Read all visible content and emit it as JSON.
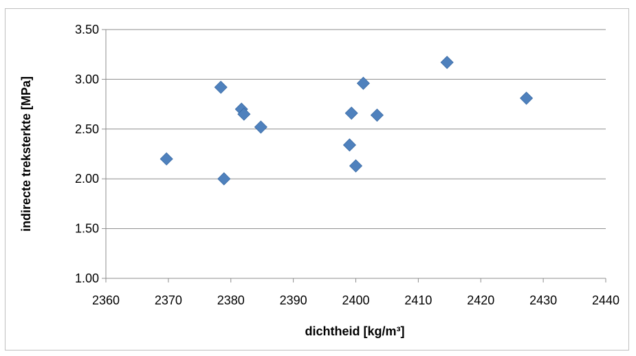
{
  "chart_data": {
    "type": "scatter",
    "title": "",
    "xlabel": "dichtheid [kg/m³]",
    "ylabel": "indirecte treksterkte [MPa]",
    "xlim": [
      2360,
      2440
    ],
    "ylim": [
      1.0,
      3.5
    ],
    "x_ticks": [
      "2360",
      "2370",
      "2380",
      "2390",
      "2400",
      "2410",
      "2420",
      "2430",
      "2440"
    ],
    "y_ticks": [
      "1.00",
      "1.50",
      "2.00",
      "2.50",
      "3.00",
      "3.50"
    ],
    "grid": "horizontal",
    "legend": "none",
    "marker": "diamond",
    "marker_color": "#4f81bd",
    "points": [
      {
        "x": 2369.7,
        "y": 2.2
      },
      {
        "x": 2378.4,
        "y": 2.92
      },
      {
        "x": 2378.9,
        "y": 2.0
      },
      {
        "x": 2381.7,
        "y": 2.7
      },
      {
        "x": 2382.1,
        "y": 2.65
      },
      {
        "x": 2384.8,
        "y": 2.52
      },
      {
        "x": 2399.0,
        "y": 2.34
      },
      {
        "x": 2399.3,
        "y": 2.66
      },
      {
        "x": 2400.0,
        "y": 2.13
      },
      {
        "x": 2401.2,
        "y": 2.96
      },
      {
        "x": 2403.4,
        "y": 2.64
      },
      {
        "x": 2414.6,
        "y": 3.17
      },
      {
        "x": 2427.3,
        "y": 2.81
      }
    ]
  }
}
